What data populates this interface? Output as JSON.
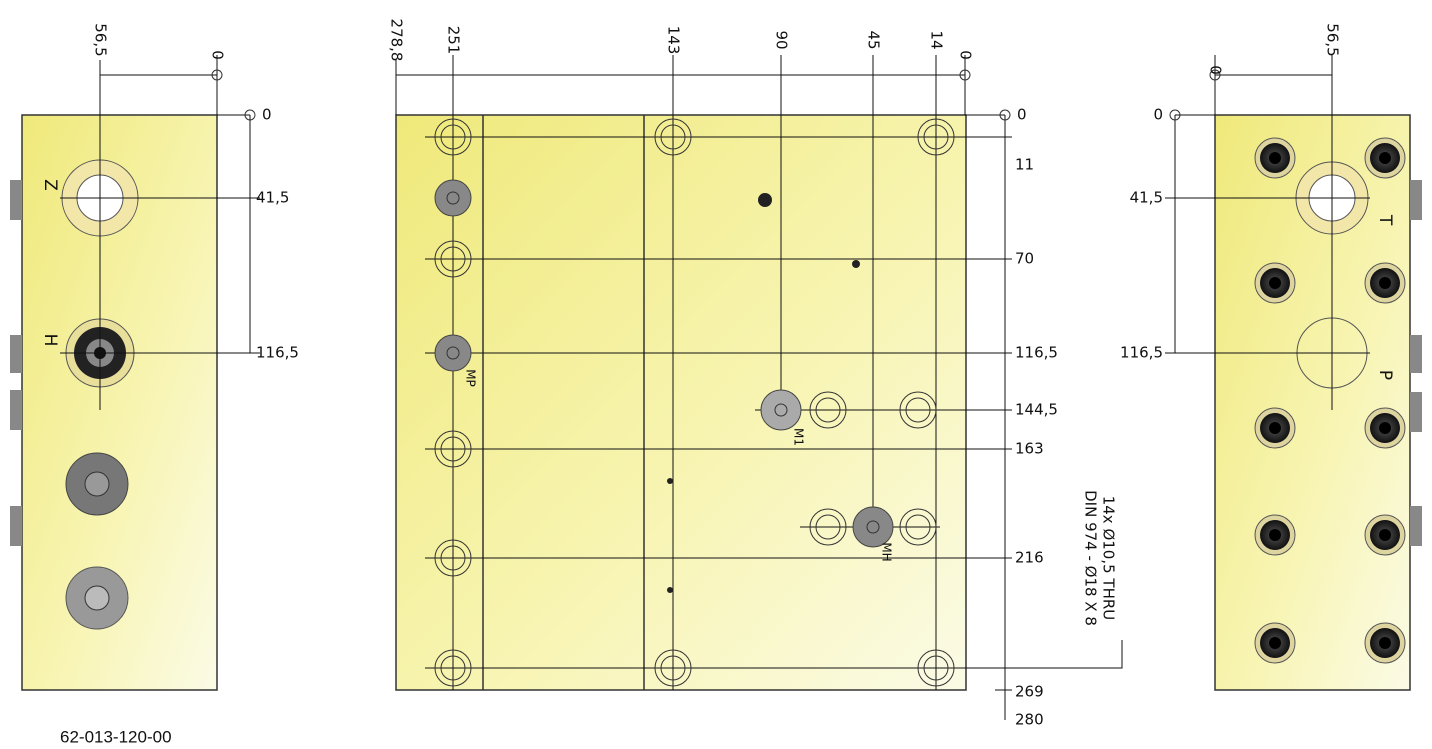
{
  "left_view": {
    "top_dims": [
      "56,5",
      "0"
    ],
    "side_dims": [
      "0",
      "41,5",
      "116,5"
    ],
    "ports": [
      "Z",
      "H"
    ]
  },
  "front_view": {
    "top_dims": [
      "278,8",
      "251",
      "143",
      "90",
      "45",
      "14",
      "0"
    ],
    "side_dims": [
      "0",
      "11",
      "70",
      "116,5",
      "144,5",
      "163",
      "216",
      "269",
      "280"
    ],
    "port_labels": [
      "MP",
      "M1",
      "MH"
    ],
    "note": [
      "14x Ø10,5 THRU",
      "DIN 974 - Ø18 X 8"
    ]
  },
  "right_view": {
    "top_dims": [
      "0",
      "56,5"
    ],
    "side_dims": [
      "0",
      "41,5",
      "116,5"
    ],
    "ports": [
      "T",
      "P"
    ]
  },
  "part_number": "62-013-120-00"
}
